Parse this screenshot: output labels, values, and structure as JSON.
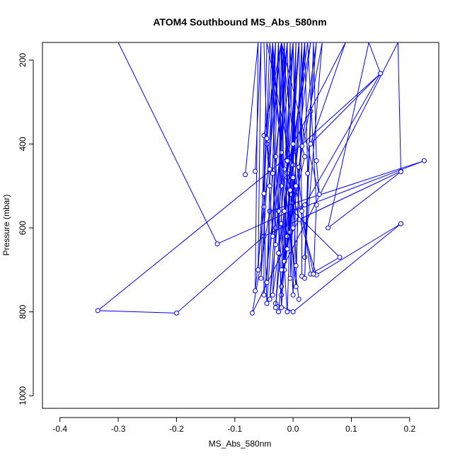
{
  "chart_data": {
    "type": "line",
    "title": "ATOM4 Southbound MS_Abs_580nm",
    "xlabel": "MS_Abs_580nm",
    "ylabel": "Pressure (mbar)",
    "xlim": [
      -0.43,
      0.25
    ],
    "ylim": [
      1030,
      158
    ],
    "y_reversed": true,
    "x_ticks": [
      -0.4,
      -0.3,
      -0.2,
      -0.1,
      0.0,
      0.1,
      0.2
    ],
    "x_tick_labels": [
      "-0.4",
      "-0.3",
      "-0.2",
      "-0.1",
      "0.0",
      "0.1",
      "0.2"
    ],
    "y_ticks": [
      200,
      400,
      600,
      800,
      1000
    ],
    "y_tick_labels": [
      "200",
      "400",
      "600",
      "800",
      "1000"
    ],
    "grid": false,
    "legend": "none",
    "series_color": "#0000ff",
    "series": [
      {
        "values": [
          [
            -0.3,
            158
          ],
          [
            -0.13,
            638
          ],
          [
            0.02,
            545
          ],
          [
            0.15,
            232
          ],
          [
            0.0,
            420
          ],
          [
            -0.335,
            797
          ],
          [
            -0.2,
            803
          ],
          [
            -0.05,
            620
          ],
          [
            0.185,
            465
          ],
          [
            0.01,
            580
          ],
          [
            -0.07,
            803
          ],
          [
            -0.04,
            560
          ],
          [
            0.225,
            440
          ],
          [
            0.0,
            560
          ],
          [
            0.08,
            670
          ],
          [
            0.03,
            710
          ],
          [
            -0.02,
            158
          ],
          [
            -0.01,
            480
          ],
          [
            0.04,
            712
          ],
          [
            0.185,
            590
          ],
          [
            0.0,
            800
          ],
          [
            -0.03,
            780
          ]
        ]
      },
      {
        "values": [
          [
            -0.082,
            473
          ],
          [
            -0.06,
            158
          ],
          [
            -0.065,
            750
          ],
          [
            -0.02,
            158
          ],
          [
            -0.05,
            380
          ],
          [
            -0.055,
            720
          ],
          [
            -0.03,
            158
          ],
          [
            -0.045,
            400
          ],
          [
            -0.035,
            620
          ],
          [
            -0.025,
            158
          ],
          [
            -0.02,
            500
          ],
          [
            -0.04,
            770
          ],
          [
            -0.01,
            158
          ],
          [
            -0.03,
            430
          ],
          [
            -0.02,
            760
          ],
          [
            0.0,
            158
          ],
          [
            -0.015,
            460
          ],
          [
            -0.03,
            790
          ],
          [
            0.01,
            158
          ],
          [
            -0.005,
            520
          ],
          [
            -0.025,
            800
          ],
          [
            0.02,
            158
          ],
          [
            0.0,
            540
          ],
          [
            -0.02,
            740
          ],
          [
            0.03,
            158
          ],
          [
            -0.01,
            470
          ],
          [
            -0.015,
            700
          ],
          [
            0.04,
            158
          ],
          [
            0.03,
            322
          ],
          [
            0.02,
            670
          ],
          [
            0.05,
            158
          ],
          [
            0.01,
            455
          ],
          [
            0.005,
            740
          ],
          [
            -0.04,
            158
          ],
          [
            -0.05,
            550
          ],
          [
            -0.045,
            780
          ],
          [
            -0.015,
            158
          ],
          [
            -0.02,
            590
          ],
          [
            -0.01,
            800
          ],
          [
            0.005,
            158
          ],
          [
            -0.005,
            610
          ],
          [
            0.01,
            770
          ]
        ]
      },
      {
        "values": [
          [
            -0.065,
            465
          ],
          [
            -0.055,
            158
          ],
          [
            -0.06,
            700
          ],
          [
            -0.035,
            158
          ],
          [
            -0.04,
            500
          ],
          [
            -0.045,
            730
          ],
          [
            -0.025,
            158
          ],
          [
            -0.02,
            420
          ],
          [
            -0.025,
            660
          ],
          [
            -0.015,
            158
          ],
          [
            -0.01,
            440
          ],
          [
            -0.015,
            680
          ],
          [
            -0.005,
            158
          ],
          [
            0.0,
            450
          ],
          [
            -0.005,
            720
          ],
          [
            0.015,
            158
          ],
          [
            0.015,
            405
          ],
          [
            0.02,
            430
          ],
          [
            -0.01,
            620
          ],
          [
            -0.035,
            158
          ],
          [
            -0.03,
            600
          ],
          [
            -0.035,
            760
          ],
          [
            0.025,
            158
          ],
          [
            0.04,
            545
          ],
          [
            0.035,
            710
          ],
          [
            -0.045,
            158
          ],
          [
            -0.05,
            518
          ],
          [
            -0.05,
            760
          ],
          [
            0.0,
            158
          ],
          [
            0.005,
            500
          ],
          [
            0.0,
            760
          ],
          [
            -0.02,
            158
          ],
          [
            -0.025,
            560
          ],
          [
            -0.02,
            790
          ],
          [
            0.01,
            158
          ],
          [
            0.015,
            560
          ],
          [
            0.015,
            715
          ]
        ]
      },
      {
        "values": [
          [
            -0.05,
            158
          ],
          [
            -0.045,
            387
          ],
          [
            -0.04,
            460
          ],
          [
            -0.03,
            158
          ],
          [
            -0.035,
            470
          ],
          [
            -0.03,
            640
          ],
          [
            -0.01,
            158
          ],
          [
            -0.005,
            510
          ],
          [
            -0.01,
            650
          ],
          [
            0.005,
            158
          ],
          [
            0.0,
            480
          ],
          [
            0.005,
            690
          ],
          [
            0.02,
            158
          ],
          [
            0.025,
            470
          ],
          [
            0.02,
            720
          ],
          [
            0.035,
            158
          ],
          [
            0.04,
            440
          ],
          [
            0.045,
            520
          ],
          [
            -0.02,
            158
          ],
          [
            -0.015,
            560
          ],
          [
            -0.02,
            700
          ],
          [
            0.18,
            158
          ],
          [
            0.185,
            466
          ],
          [
            0.06,
            600
          ],
          [
            0.13,
            158
          ],
          [
            0.15,
            232
          ],
          [
            0.03,
            400
          ],
          [
            0.09,
            158
          ],
          [
            0.0,
            400
          ],
          [
            0.0,
            600
          ]
        ]
      }
    ]
  }
}
